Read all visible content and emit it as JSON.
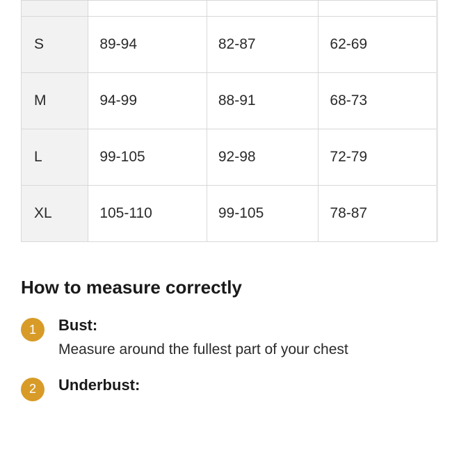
{
  "table": {
    "columns": {
      "width_first": 96,
      "width_others": [
        170,
        160,
        170
      ]
    },
    "rows": [
      {
        "size": "",
        "col1": "",
        "col2": "",
        "col3": ""
      },
      {
        "size": "S",
        "col1": "89-94",
        "col2": "82-87",
        "col3": "62-69"
      },
      {
        "size": "M",
        "col1": "94-99",
        "col2": "88-91",
        "col3": "68-73"
      },
      {
        "size": "L",
        "col1": "99-105",
        "col2": "92-98",
        "col3": "72-79"
      },
      {
        "size": "XL",
        "col1": "105-110",
        "col2": "99-105",
        "col3": "78-87"
      }
    ],
    "cell_fontsize": 21,
    "border_color": "#d8d8d8",
    "header_bg": "#f2f2f2",
    "outer_border_right": "#e8e8e8"
  },
  "measure": {
    "heading": "How to measure correctly",
    "heading_fontsize": 26,
    "badge_bg": "#d89b28",
    "badge_color": "#ffffff",
    "items": [
      {
        "num": "1",
        "label": "Bust:",
        "desc": "Measure around the fullest part of your chest"
      },
      {
        "num": "2",
        "label": "Underbust:",
        "desc": ""
      }
    ],
    "label_fontsize": 22,
    "desc_fontsize": 21
  },
  "colors": {
    "background": "#ffffff",
    "text": "#1a1a1a",
    "text_cell": "#2a2a2a"
  }
}
